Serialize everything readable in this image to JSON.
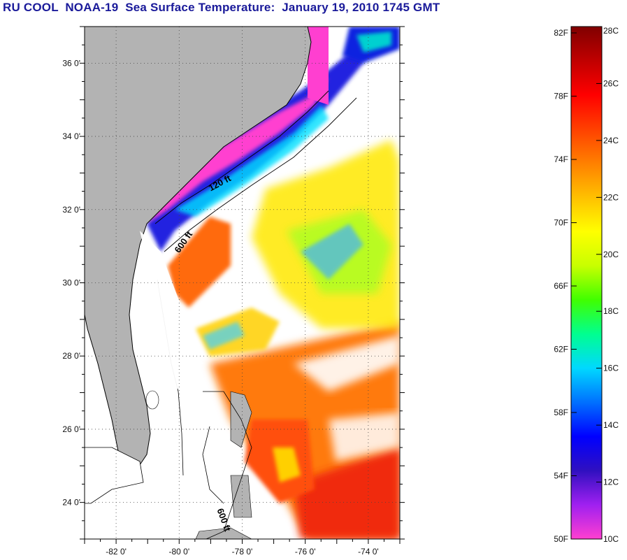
{
  "title": "RU COOL  NOAA-19  Sea Surface Temperature:  January 19, 2010 1745 GMT",
  "map": {
    "lon_range": [
      -83,
      -73
    ],
    "lat_range": [
      23,
      37
    ],
    "lon_ticks": [
      {
        "value": -82,
        "label": "-82 0'"
      },
      {
        "value": -80,
        "label": "-80 0'"
      },
      {
        "value": -78,
        "label": "-78 0'"
      },
      {
        "value": -76,
        "label": "-76 0'"
      },
      {
        "value": -74,
        "label": "-74 0'"
      }
    ],
    "lat_ticks": [
      {
        "value": 24,
        "label": "24 0'"
      },
      {
        "value": 26,
        "label": "26 0'"
      },
      {
        "value": 28,
        "label": "28 0'"
      },
      {
        "value": 30,
        "label": "30 0'"
      },
      {
        "value": 32,
        "label": "32 0'"
      },
      {
        "value": 34,
        "label": "34 0'"
      },
      {
        "value": 36,
        "label": "36 0'"
      }
    ],
    "contour_labels": [
      {
        "text": "120 ft",
        "lon": -79.0,
        "lat": 32.5
      },
      {
        "text": "600 ft",
        "lon": -80.0,
        "lat": 30.8
      },
      {
        "text": "600 ft",
        "lon": -78.8,
        "lat": 23.8
      }
    ],
    "land_color": "#b3b3b3"
  },
  "colorbar": {
    "min_c": 10,
    "max_c": 28,
    "celsius_ticks": [
      {
        "value": 10,
        "label": "10C"
      },
      {
        "value": 12,
        "label": "12C"
      },
      {
        "value": 14,
        "label": "14C"
      },
      {
        "value": 16,
        "label": "16C"
      },
      {
        "value": 18,
        "label": "18C"
      },
      {
        "value": 20,
        "label": "20C"
      },
      {
        "value": 22,
        "label": "22C"
      },
      {
        "value": 24,
        "label": "24C"
      },
      {
        "value": 26,
        "label": "26C"
      },
      {
        "value": 28,
        "label": "28C"
      }
    ],
    "fahrenheit_ticks": [
      {
        "value": 50,
        "label": "50F"
      },
      {
        "value": 54,
        "label": "54F"
      },
      {
        "value": 58,
        "label": "58F"
      },
      {
        "value": 62,
        "label": "62F"
      },
      {
        "value": 66,
        "label": "66F"
      },
      {
        "value": 70,
        "label": "70F"
      },
      {
        "value": 74,
        "label": "74F"
      },
      {
        "value": 78,
        "label": "78F"
      },
      {
        "value": 82,
        "label": "82F"
      }
    ],
    "gradient_colors": [
      "#ff3fd0",
      "#a020f0",
      "#3010c0",
      "#0000ff",
      "#0070ff",
      "#00d8ff",
      "#00ff90",
      "#40ff00",
      "#c8ff00",
      "#ffff00",
      "#ffc000",
      "#ff8000",
      "#ff4000",
      "#ff0000",
      "#c00000",
      "#800000"
    ]
  }
}
